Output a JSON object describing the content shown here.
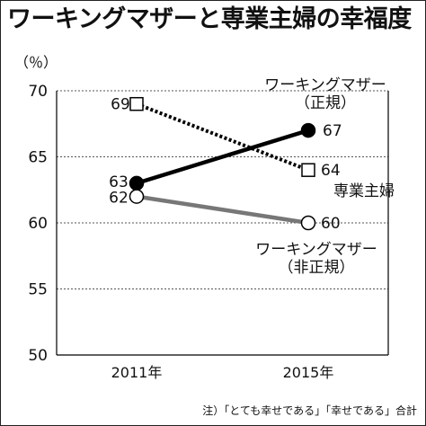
{
  "chart_data": {
    "type": "line",
    "title": "ワーキングマザーと専業主婦の幸福度",
    "ylabel": "（％）",
    "xlabel": "",
    "categories": [
      "2011年",
      "2015年"
    ],
    "yticks": [
      50,
      55,
      60,
      65,
      70
    ],
    "ylim": [
      50,
      70
    ],
    "grid": true,
    "series": [
      {
        "name": "ワーキングマザー（正規）",
        "name_lines": [
          "ワーキングマザー",
          "（正規）"
        ],
        "values": [
          63,
          67
        ],
        "value_labels": [
          "63",
          "67"
        ],
        "line_style": "solid",
        "line_color": "#000000",
        "marker": "filled-circle"
      },
      {
        "name": "専業主婦",
        "name_lines": [
          "専業主婦"
        ],
        "values": [
          69,
          64
        ],
        "value_labels": [
          "69",
          "64"
        ],
        "line_style": "dotted",
        "line_color": "#000000",
        "marker": "open-square"
      },
      {
        "name": "ワーキングマザー（非正規）",
        "name_lines": [
          "ワーキングマザー",
          "（非正規）"
        ],
        "values": [
          62,
          60
        ],
        "value_labels": [
          "62",
          "60"
        ],
        "line_style": "solid",
        "line_color": "#777777",
        "marker": "open-circle"
      }
    ],
    "footnote": "注）「とても幸せである」「幸せである」合計"
  }
}
